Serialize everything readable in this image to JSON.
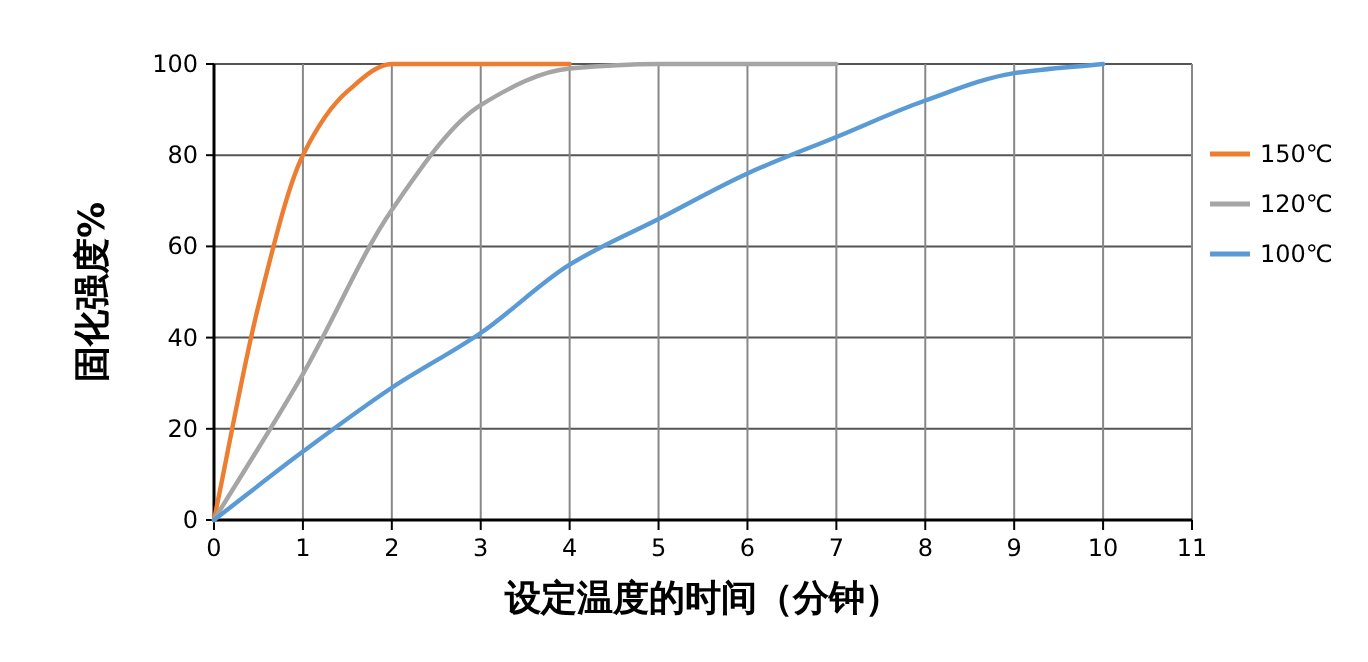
{
  "chart_data": {
    "type": "line",
    "xlabel": "设定温度的时间（分钟）",
    "ylabel": "固化强度%",
    "xlim": [
      0,
      11
    ],
    "xticks": [
      0,
      1,
      2,
      3,
      4,
      5,
      6,
      7,
      8,
      9,
      10,
      11
    ],
    "ylim": [
      0,
      100
    ],
    "yticks": [
      0,
      20,
      40,
      60,
      80,
      100
    ],
    "grid": true,
    "legend": "right",
    "marker": "none",
    "line_style": "solid",
    "series": [
      {
        "name": "150℃",
        "color": "#ed7d31",
        "x": [
          0,
          0.5,
          1,
          1.5,
          2,
          3,
          4
        ],
        "values": [
          0,
          47,
          80,
          94,
          100,
          100,
          100
        ]
      },
      {
        "name": "120℃",
        "color": "#a5a5a5",
        "x": [
          0,
          1,
          2,
          3,
          4,
          5,
          6,
          7
        ],
        "values": [
          0,
          32,
          68,
          91,
          99,
          100,
          100,
          100
        ]
      },
      {
        "name": "100℃",
        "color": "#5b9bd5",
        "x": [
          0,
          1,
          2,
          3,
          4,
          5,
          6,
          7,
          8,
          9,
          10
        ],
        "values": [
          0,
          15,
          29,
          41,
          56,
          66,
          76,
          84,
          92,
          98,
          100
        ]
      }
    ]
  }
}
